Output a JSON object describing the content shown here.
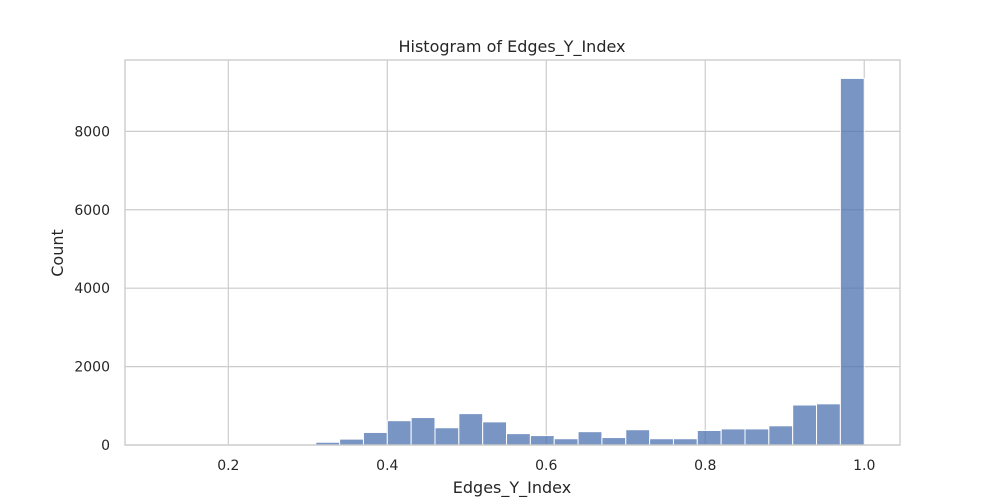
{
  "chart_data": {
    "type": "bar",
    "title": "Histogram of Edges_Y_Index",
    "xlabel": "Edges_Y_Index",
    "ylabel": "Count",
    "xlim": [
      0.07,
      1.045
    ],
    "ylim": [
      0,
      9820
    ],
    "xticks": [
      0.2,
      0.4,
      0.6,
      0.8,
      1.0
    ],
    "xtick_labels": [
      "0.2",
      "0.4",
      "0.6",
      "0.8",
      "1.0"
    ],
    "yticks": [
      0,
      2000,
      4000,
      6000,
      8000
    ],
    "ytick_labels": [
      "0",
      "2000",
      "4000",
      "6000",
      "8000"
    ],
    "grid": true,
    "bar_color": "#4c72b0",
    "bin_start": 0.1,
    "bin_width": 0.03,
    "values": [
      5,
      5,
      5,
      5,
      5,
      5,
      5,
      70,
      150,
      320,
      620,
      700,
      440,
      800,
      590,
      290,
      240,
      160,
      340,
      190,
      390,
      160,
      160,
      370,
      410,
      410,
      490,
      1020,
      1050,
      9350
    ]
  }
}
